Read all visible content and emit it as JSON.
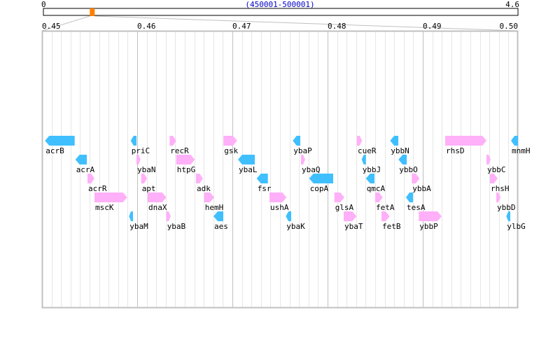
{
  "overview": {
    "start_label": "0",
    "end_label": "4.6",
    "range_label": "(450001-500001)",
    "genome_length_mb": 4.6,
    "window_start_bp": 450001,
    "window_end_bp": 500001
  },
  "axis": {
    "min_mb": 0.45,
    "max_mb": 0.5,
    "ticks": [
      "0.45",
      "0.46",
      "0.47",
      "0.48",
      "0.49",
      "0.50"
    ]
  },
  "colors": {
    "plus_strand": "#ffb0f8",
    "minus_strand": "#40bfff",
    "marker": "#ff8000",
    "grid_major": "#c0c0c0",
    "grid_minor": "#e6e6e6"
  },
  "genes": [
    {
      "name": "acrB",
      "start": 450316,
      "end": 453434,
      "strand": "-",
      "row": 0
    },
    {
      "name": "priC",
      "start": 459316,
      "end": 459926,
      "strand": "-",
      "row": 0
    },
    {
      "name": "recR",
      "start": 463405,
      "end": 464096,
      "strand": "+",
      "row": 0
    },
    {
      "name": "gsk",
      "start": 469066,
      "end": 470493,
      "strand": "+",
      "row": 0
    },
    {
      "name": "ybaP",
      "start": 476346,
      "end": 477133,
      "strand": "-",
      "row": 0
    },
    {
      "name": "cueR",
      "start": 483088,
      "end": 483626,
      "strand": "+",
      "row": 0
    },
    {
      "name": "ybbN",
      "start": 486566,
      "end": 487426,
      "strand": "-",
      "row": 0
    },
    {
      "name": "rhsD",
      "start": 492353,
      "end": 496691,
      "strand": "+",
      "row": 0
    },
    {
      "name": "mnmH",
      "start": 499265,
      "end": 500000,
      "strand": "-",
      "row": 0
    },
    {
      "name": "acrA",
      "start": 453507,
      "end": 454706,
      "strand": "-",
      "row": 1
    },
    {
      "name": "ybaN",
      "start": 459926,
      "end": 460346,
      "strand": "+",
      "row": 1
    },
    {
      "name": "htpG",
      "start": 464096,
      "end": 466052,
      "strand": "+",
      "row": 1
    },
    {
      "name": "ybaL",
      "start": 470588,
      "end": 472353,
      "strand": "-",
      "row": 1
    },
    {
      "name": "ybaQ",
      "start": 477206,
      "end": 477647,
      "strand": "+",
      "row": 1
    },
    {
      "name": "ybbJ",
      "start": 483581,
      "end": 484022,
      "strand": "-",
      "row": 1
    },
    {
      "name": "ybbO",
      "start": 487448,
      "end": 488309,
      "strand": "-",
      "row": 1
    },
    {
      "name": "ybbC",
      "start": 496691,
      "end": 497132,
      "strand": "+",
      "row": 1
    },
    {
      "name": "acrR",
      "start": 454779,
      "end": 455515,
      "strand": "+",
      "row": 2
    },
    {
      "name": "apt",
      "start": 460419,
      "end": 461029,
      "strand": "+",
      "row": 2
    },
    {
      "name": "adk",
      "start": 466176,
      "end": 466912,
      "strand": "+",
      "row": 2
    },
    {
      "name": "fsr",
      "start": 472551,
      "end": 473728,
      "strand": "-",
      "row": 2
    },
    {
      "name": "copA",
      "start": 478066,
      "end": 480588,
      "strand": "-",
      "row": 2
    },
    {
      "name": "qmcA",
      "start": 484022,
      "end": 484926,
      "strand": "-",
      "row": 2
    },
    {
      "name": "ybbA",
      "start": 488846,
      "end": 489654,
      "strand": "+",
      "row": 2
    },
    {
      "name": "rhsH",
      "start": 497059,
      "end": 497868,
      "strand": "+",
      "row": 2
    },
    {
      "name": "mscK",
      "start": 455515,
      "end": 458949,
      "strand": "+",
      "row": 3
    },
    {
      "name": "dnaX",
      "start": 461103,
      "end": 463066,
      "strand": "+",
      "row": 3
    },
    {
      "name": "hemH",
      "start": 467037,
      "end": 468088,
      "strand": "+",
      "row": 3
    },
    {
      "name": "ushA",
      "start": 473897,
      "end": 475684,
      "strand": "+",
      "row": 3
    },
    {
      "name": "glsA",
      "start": 480713,
      "end": 481765,
      "strand": "+",
      "row": 3
    },
    {
      "name": "fetA",
      "start": 485000,
      "end": 485786,
      "strand": "+",
      "row": 3
    },
    {
      "name": "tesA",
      "start": 488235,
      "end": 488970,
      "strand": "-",
      "row": 3
    },
    {
      "name": "ybbD",
      "start": 497721,
      "end": 498162,
      "strand": "+",
      "row": 3
    },
    {
      "name": "ybaM",
      "start": 459140,
      "end": 459559,
      "strand": "-",
      "row": 4
    },
    {
      "name": "ybaB",
      "start": 463066,
      "end": 463529,
      "strand": "+",
      "row": 4
    },
    {
      "name": "aes",
      "start": 468015,
      "end": 469044,
      "strand": "-",
      "row": 4
    },
    {
      "name": "ybaK",
      "start": 475610,
      "end": 476176,
      "strand": "-",
      "row": 4
    },
    {
      "name": "ybaT",
      "start": 481691,
      "end": 483037,
      "strand": "+",
      "row": 4
    },
    {
      "name": "fetB",
      "start": 485662,
      "end": 486522,
      "strand": "+",
      "row": 4
    },
    {
      "name": "ybbP",
      "start": 489581,
      "end": 491985,
      "strand": "+",
      "row": 4
    },
    {
      "name": "ylbG",
      "start": 498772,
      "end": 499191,
      "strand": "-",
      "row": 4
    }
  ]
}
